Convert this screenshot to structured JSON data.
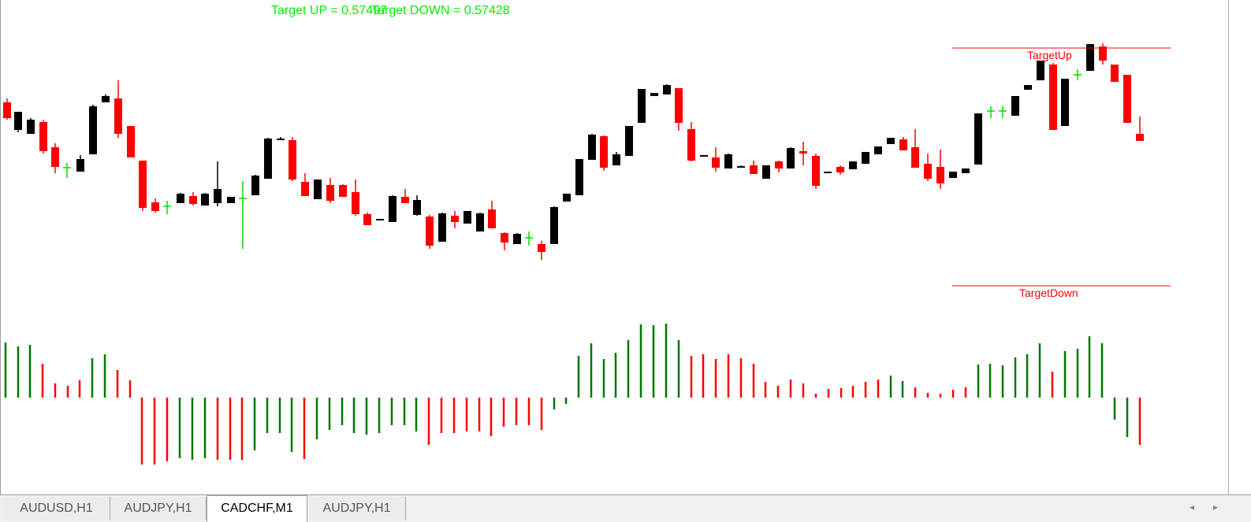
{
  "header": {
    "target_up_text": "Target UP = 0.57497",
    "target_down_text": "Target DOWN = 0.57428",
    "text_color": "#00ee00"
  },
  "targets": {
    "up_label": "TargetUp",
    "down_label": "TargetDown",
    "line_color": "#ff0000"
  },
  "colors": {
    "bull_candle": "#000000",
    "bear_candle": "#ff0000",
    "doji": "#00dd00",
    "hist_green": "#007700",
    "hist_red": "#ff0000"
  },
  "tabs": [
    {
      "label": "AUDUSD,H1",
      "active": false
    },
    {
      "label": "AUDJPY,H1",
      "active": false
    },
    {
      "label": "CADCHF,M1",
      "active": true
    },
    {
      "label": "AUDJPY,H1",
      "active": false
    }
  ],
  "scroll": {
    "left_icon": "◂",
    "right_icon": "▸"
  }
}
